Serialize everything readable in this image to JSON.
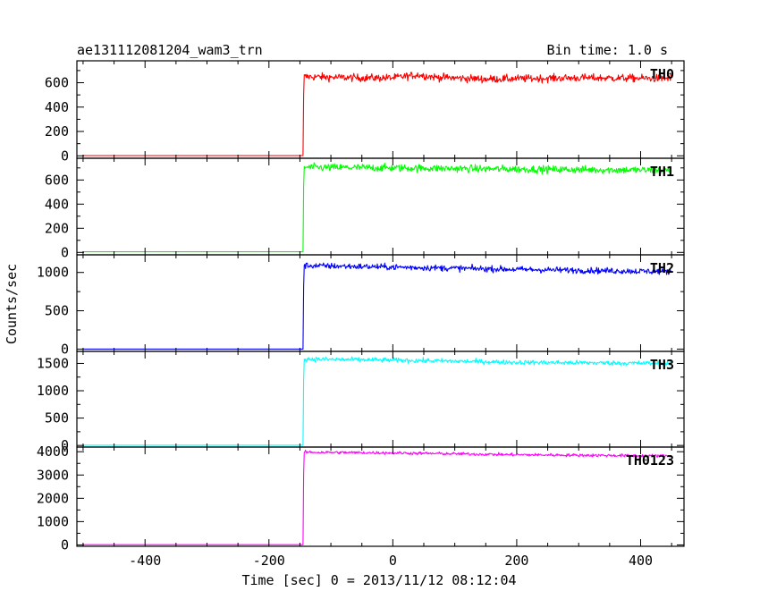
{
  "header": {
    "title": "ae131112081204_wam3_trn",
    "bin_time": "Bin time: 1.0 s"
  },
  "chart_data": {
    "type": "line",
    "xlabel": "Time [sec] 0 = 2013/11/12 08:12:04",
    "ylabel": "Counts/sec",
    "xlim": [
      -510,
      470
    ],
    "x_ticks": [
      -400,
      -200,
      0,
      200,
      400
    ],
    "x_start": -500,
    "x_end": 450,
    "trigger_time": -145,
    "panels": [
      {
        "name": "TH0",
        "color": "#ff0000",
        "ylim": [
          -20,
          780
        ],
        "y_ticks": [
          0,
          200,
          400,
          600
        ],
        "pre_level": 2,
        "post_level": 640,
        "noise": 22,
        "profile": [
          [
            -145,
            650
          ],
          [
            -100,
            645
          ],
          [
            -50,
            640
          ],
          [
            0,
            640
          ],
          [
            40,
            665
          ],
          [
            70,
            645
          ],
          [
            150,
            630
          ],
          [
            300,
            640
          ],
          [
            450,
            635
          ]
        ]
      },
      {
        "name": "TH1",
        "color": "#00ff00",
        "ylim": [
          -20,
          780
        ],
        "y_ticks": [
          0,
          200,
          400,
          600
        ],
        "pre_level": 5,
        "post_level": 700,
        "noise": 22,
        "profile": [
          [
            -145,
            705
          ],
          [
            0,
            700
          ],
          [
            200,
            690
          ],
          [
            450,
            680
          ]
        ]
      },
      {
        "name": "TH2",
        "color": "#0000ff",
        "ylim": [
          -30,
          1230
        ],
        "y_ticks": [
          0,
          500,
          1000
        ],
        "pre_level": 0,
        "post_level": 1050,
        "noise": 28,
        "profile": [
          [
            -145,
            1090
          ],
          [
            0,
            1070
          ],
          [
            200,
            1040
          ],
          [
            450,
            1010
          ]
        ]
      },
      {
        "name": "TH3",
        "color": "#00ffff",
        "ylim": [
          -30,
          1720
        ],
        "y_ticks": [
          0,
          500,
          1000,
          1500
        ],
        "pre_level": 5,
        "post_level": 1550,
        "noise": 30,
        "profile": [
          [
            -145,
            1580
          ],
          [
            0,
            1560
          ],
          [
            200,
            1520
          ],
          [
            450,
            1500
          ]
        ]
      },
      {
        "name": "TH0123",
        "color": "#ff00ff",
        "ylim": [
          -60,
          4200
        ],
        "y_ticks": [
          0,
          1000,
          2000,
          3000,
          4000
        ],
        "pre_level": 10,
        "post_level": 3920,
        "noise": 45,
        "profile": [
          [
            -145,
            3980
          ],
          [
            0,
            3950
          ],
          [
            200,
            3870
          ],
          [
            450,
            3820
          ]
        ]
      }
    ]
  }
}
